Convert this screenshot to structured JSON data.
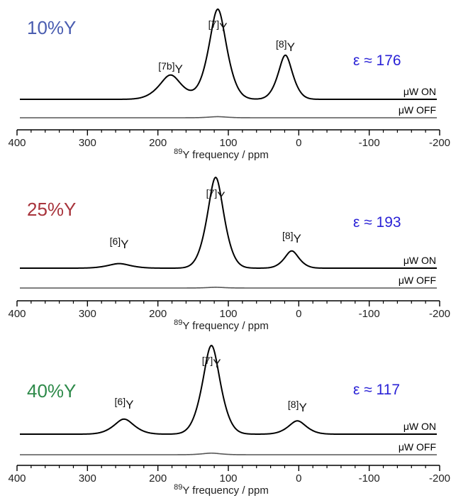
{
  "chart_data": [
    {
      "type": "line",
      "sample_label": "10%Y",
      "sample_color": "#4a5db0",
      "enhancement_text": "ε ≈ 176",
      "enhancement_color": "#2a22d6",
      "xlabel_prefix": "89",
      "xlabel": "Y frequency  / ppm",
      "xlim": [
        400,
        -200
      ],
      "x_ticks": [
        400,
        300,
        200,
        100,
        0,
        -100,
        -200
      ],
      "x_tick_labels": [
        "400",
        "300",
        "200",
        "100",
        "0",
        "-100",
        "-200"
      ],
      "trace_labels": {
        "on": "μW ON",
        "off": "μW OFF"
      },
      "series": [
        {
          "name": "μW ON",
          "peaks": [
            {
              "label_pre": "[7b]",
              "label_post": "Y",
              "ppm": 182,
              "height": 0.27,
              "width": 20
            },
            {
              "label_pre": "[7]",
              "label_post": "Y",
              "ppm": 115,
              "height": 1.0,
              "width": 16
            },
            {
              "label_pre": "[8]",
              "label_post": "Y",
              "ppm": 19,
              "height": 0.49,
              "width": 13
            }
          ]
        },
        {
          "name": "μW OFF",
          "peaks": [
            {
              "ppm": 115,
              "height": 0.012,
              "width": 16
            }
          ]
        }
      ]
    },
    {
      "type": "line",
      "sample_label": "25%Y",
      "sample_color": "#a8343c",
      "enhancement_text": "ε ≈ 193",
      "enhancement_color": "#2a22d6",
      "xlabel_prefix": "89",
      "xlabel": "Y frequency  / ppm",
      "xlim": [
        400,
        -200
      ],
      "x_ticks": [
        400,
        300,
        200,
        100,
        0,
        -100,
        -200
      ],
      "x_tick_labels": [
        "400",
        "300",
        "200",
        "100",
        "0",
        "-100",
        "-200"
      ],
      "trace_labels": {
        "on": "μW ON",
        "off": "μW OFF"
      },
      "series": [
        {
          "name": "μW ON",
          "peaks": [
            {
              "label_pre": "[6]",
              "label_post": "Y",
              "ppm": 255,
              "height": 0.05,
              "width": 20
            },
            {
              "label_pre": "[7]",
              "label_post": "Y",
              "ppm": 118,
              "height": 1.0,
              "width": 15
            },
            {
              "label_pre": "[8]",
              "label_post": "Y",
              "ppm": 10,
              "height": 0.19,
              "width": 13
            }
          ]
        },
        {
          "name": "μW OFF",
          "peaks": [
            {
              "ppm": 118,
              "height": 0.008,
              "width": 15
            }
          ]
        }
      ]
    },
    {
      "type": "line",
      "sample_label": "40%Y",
      "sample_color": "#2e8a4a",
      "enhancement_text": "ε ≈ 117",
      "enhancement_color": "#2a22d6",
      "xlabel_prefix": "89",
      "xlabel": "Y frequency  / ppm",
      "xlim": [
        400,
        -200
      ],
      "x_ticks": [
        400,
        300,
        200,
        100,
        0,
        -100,
        -200
      ],
      "x_tick_labels": [
        "400",
        "300",
        "200",
        "100",
        "0",
        "-100",
        "-200"
      ],
      "trace_labels": {
        "on": "μW ON",
        "off": "μW OFF"
      },
      "series": [
        {
          "name": "μW ON",
          "peaks": [
            {
              "label_pre": "[6]",
              "label_post": "Y",
              "ppm": 248,
              "height": 0.17,
              "width": 18
            },
            {
              "label_pre": "[7]",
              "label_post": "Y",
              "ppm": 124,
              "height": 1.0,
              "width": 16
            },
            {
              "label_pre": "[8]",
              "label_post": "Y",
              "ppm": 2,
              "height": 0.15,
              "width": 16
            }
          ]
        },
        {
          "name": "μW OFF",
          "peaks": [
            {
              "ppm": 124,
              "height": 0.018,
              "width": 16
            }
          ]
        }
      ]
    }
  ]
}
